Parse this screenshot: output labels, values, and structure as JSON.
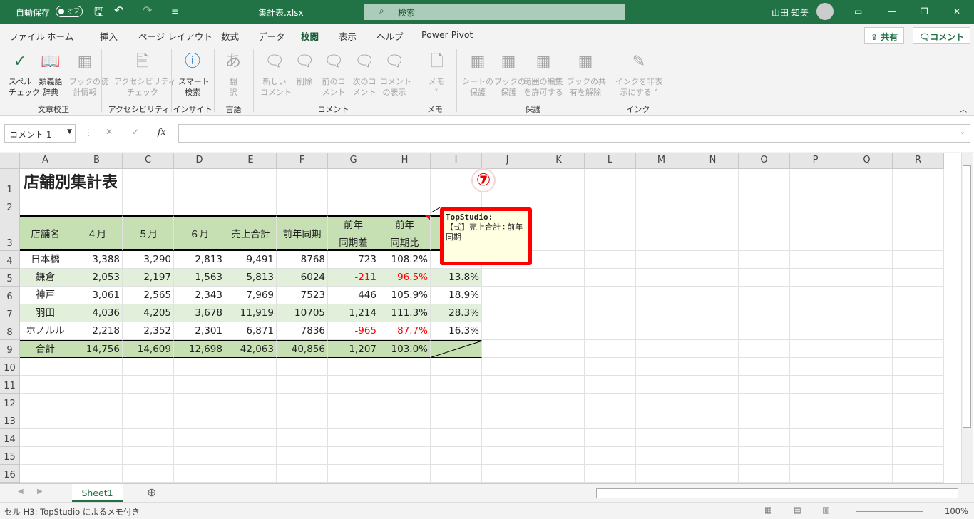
{
  "titlebar": {
    "autosave": "自動保存",
    "autosave_state": "オフ",
    "filename": "集計表.xlsx",
    "search": "検索",
    "user": "山田 知美"
  },
  "menu": {
    "tabs": [
      "ファイル",
      "ホーム",
      "挿入",
      "ページ レイアウト",
      "数式",
      "データ",
      "校閲",
      "表示",
      "ヘルプ",
      "Power Pivot"
    ],
    "active": "校閲",
    "share": "共有",
    "comment": "コメント"
  },
  "ribbon": {
    "buttons": [
      {
        "label": "スペル\nチェック",
        "icon": "spell-check-icon",
        "glyph": "✓",
        "enabled": true
      },
      {
        "label": "類義語\n辞典",
        "icon": "thesaurus-icon",
        "glyph": "📖",
        "enabled": true
      },
      {
        "label": "ブックの統\n計情報",
        "icon": "workbook-statistics-icon",
        "glyph": "▦",
        "enabled": false
      },
      {
        "label": "アクセシビリティ\nチェック",
        "icon": "accessibility-check-icon",
        "glyph": "🗎",
        "enabled": false
      },
      {
        "label": "スマート\n検索",
        "icon": "smart-lookup-icon",
        "glyph": "ⓘ",
        "enabled": true
      },
      {
        "label": "翻\n訳",
        "icon": "translate-icon",
        "glyph": "あ",
        "enabled": false
      },
      {
        "label": "新しい\nコメント",
        "icon": "new-comment-icon",
        "glyph": "🗨",
        "enabled": false
      },
      {
        "label": "削除",
        "icon": "delete-comment-icon",
        "glyph": "🗨",
        "enabled": false
      },
      {
        "label": "前のコ\nメント",
        "icon": "previous-comment-icon",
        "glyph": "🗨",
        "enabled": false
      },
      {
        "label": "次のコ\nメント",
        "icon": "next-comment-icon",
        "glyph": "🗨",
        "enabled": false
      },
      {
        "label": "コメント\nの表示",
        "icon": "show-comments-icon",
        "glyph": "🗨",
        "enabled": false
      },
      {
        "label": "メモ\n˅",
        "icon": "notes-icon",
        "glyph": "🗋",
        "enabled": false
      },
      {
        "label": "シートの\n保護",
        "icon": "protect-sheet-icon",
        "glyph": "▦",
        "enabled": false
      },
      {
        "label": "ブックの\n保護",
        "icon": "protect-workbook-icon",
        "glyph": "▦",
        "enabled": false
      },
      {
        "label": "範囲の編集\nを許可する",
        "icon": "allow-edit-ranges-icon",
        "glyph": "▦",
        "enabled": false
      },
      {
        "label": "ブックの共\n有を解除",
        "icon": "unshare-workbook-icon",
        "glyph": "▦",
        "enabled": false
      },
      {
        "label": "インクを非表\n示にする ˅",
        "icon": "hide-ink-icon",
        "glyph": "✎",
        "enabled": false
      }
    ],
    "groups": [
      "文章校正",
      "アクセシビリティ",
      "インサイト",
      "言語",
      "コメント",
      "メモ",
      "保護",
      "インク"
    ]
  },
  "formula_bar": {
    "name_box": "コメント 1",
    "fx": "fx",
    "value": ""
  },
  "grid": {
    "columns": [
      "A",
      "B",
      "C",
      "D",
      "E",
      "F",
      "G",
      "H",
      "I",
      "J",
      "K",
      "L",
      "M",
      "N",
      "O",
      "P",
      "Q",
      "R"
    ],
    "rows": [
      "1",
      "2",
      "3",
      "4",
      "5",
      "6",
      "7",
      "8",
      "9",
      "10",
      "11",
      "12",
      "13",
      "14",
      "15",
      "16"
    ],
    "title": "店舗別集計表",
    "headers": [
      "店舗名",
      "４月",
      "５月",
      "６月",
      "売上合計",
      "前年同期",
      "前年\n同期差",
      "前年\n同期比",
      ""
    ],
    "data": [
      [
        "日本橋",
        "3,388",
        "3,290",
        "2,813",
        "9,491",
        "8768",
        "723",
        "108.2%",
        ""
      ],
      [
        "鎌倉",
        "2,053",
        "2,197",
        "1,563",
        "5,813",
        "6024",
        "-211",
        "96.5%",
        "13.8%"
      ],
      [
        "神戸",
        "3,061",
        "2,565",
        "2,343",
        "7,969",
        "7523",
        "446",
        "105.9%",
        "18.9%"
      ],
      [
        "羽田",
        "4,036",
        "4,205",
        "3,678",
        "11,919",
        "10705",
        "1,214",
        "111.3%",
        "28.3%"
      ],
      [
        "ホノルル",
        "2,218",
        "2,352",
        "2,301",
        "6,871",
        "7836",
        "-965",
        "87.7%",
        "16.3%"
      ],
      [
        "合計",
        "14,756",
        "14,609",
        "12,698",
        "42,063",
        "40,856",
        "1,207",
        "103.0%",
        ""
      ]
    ]
  },
  "comment": {
    "author": "TopStudio:",
    "text": "【式】売上合計÷前年同期"
  },
  "annotation": "⑦",
  "sheet_tabs": [
    "Sheet1"
  ],
  "status": {
    "text": "セル H3: TopStudio によるメモ付き",
    "zoom": "100%"
  },
  "colors": {
    "header_green": "#c6e0b4",
    "band_green": "#e2efda",
    "negative": "#ff0000",
    "excel_green": "#217346"
  }
}
